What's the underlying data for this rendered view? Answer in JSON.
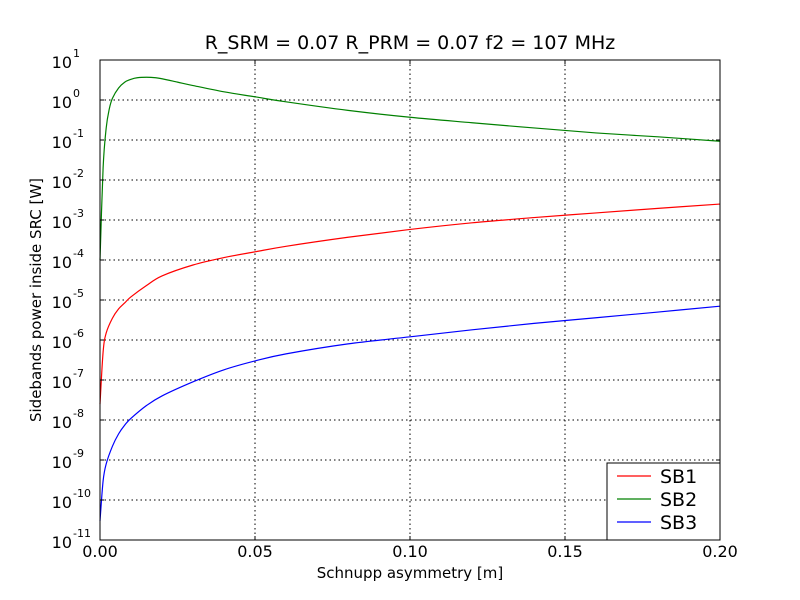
{
  "chart_data": {
    "type": "line",
    "title": "R_SRM = 0.07 R_PRM = 0.07   f2 = 107 MHz",
    "xlabel": "Schnupp asymmetry [m]",
    "ylabel": "Sidebands power inside SRC [W]",
    "xlim": [
      0.0,
      0.2
    ],
    "ylim": [
      1e-11,
      10
    ],
    "yscale": "log",
    "grid": true,
    "legend_position": "bottom-right",
    "x_ticks": [
      {
        "value": 0.0,
        "label": "0.00"
      },
      {
        "value": 0.05,
        "label": "0.05"
      },
      {
        "value": 0.1,
        "label": "0.10"
      },
      {
        "value": 0.15,
        "label": "0.15"
      },
      {
        "value": 0.2,
        "label": "0.20"
      }
    ],
    "y_ticks": [
      {
        "value": 1e-11,
        "base": "10",
        "exp": "-11"
      },
      {
        "value": 1e-10,
        "base": "10",
        "exp": "-10"
      },
      {
        "value": 1e-09,
        "base": "10",
        "exp": "-9"
      },
      {
        "value": 1e-08,
        "base": "10",
        "exp": "-8"
      },
      {
        "value": 1e-07,
        "base": "10",
        "exp": "-7"
      },
      {
        "value": 1e-06,
        "base": "10",
        "exp": "-6"
      },
      {
        "value": 1e-05,
        "base": "10",
        "exp": "-5"
      },
      {
        "value": 0.0001,
        "base": "10",
        "exp": "-4"
      },
      {
        "value": 0.001,
        "base": "10",
        "exp": "-3"
      },
      {
        "value": 0.01,
        "base": "10",
        "exp": "-2"
      },
      {
        "value": 0.1,
        "base": "10",
        "exp": "-1"
      },
      {
        "value": 1,
        "base": "10",
        "exp": "0"
      },
      {
        "value": 10,
        "base": "10",
        "exp": "1"
      }
    ],
    "series": [
      {
        "name": "SB1",
        "color": "#ff0000",
        "x": [
          0.0,
          0.001,
          0.002,
          0.004,
          0.006,
          0.008,
          0.01,
          0.015,
          0.02,
          0.03,
          0.04,
          0.05,
          0.06,
          0.08,
          0.1,
          0.12,
          0.14,
          0.16,
          0.18,
          0.2
        ],
        "y": [
          2.5e-08,
          5e-07,
          1.5e-06,
          3.5e-06,
          6e-06,
          8.5e-06,
          1.2e-05,
          2.3e-05,
          4e-05,
          7.5e-05,
          0.000115,
          0.00016,
          0.00022,
          0.00037,
          0.00058,
          0.00085,
          0.00115,
          0.0015,
          0.00195,
          0.0025
        ]
      },
      {
        "name": "SB2",
        "color": "#008000",
        "x": [
          0.0,
          0.001,
          0.002,
          0.003,
          0.004,
          0.006,
          0.008,
          0.01,
          0.012,
          0.015,
          0.018,
          0.02,
          0.025,
          0.03,
          0.04,
          0.05,
          0.06,
          0.08,
          0.1,
          0.12,
          0.14,
          0.16,
          0.18,
          0.2
        ],
        "y": [
          0.0001,
          0.02,
          0.2,
          0.6,
          1.1,
          2.0,
          2.8,
          3.3,
          3.6,
          3.7,
          3.6,
          3.4,
          2.8,
          2.3,
          1.6,
          1.2,
          0.9,
          0.55,
          0.37,
          0.27,
          0.2,
          0.15,
          0.12,
          0.093
        ]
      },
      {
        "name": "SB3",
        "color": "#0000ff",
        "x": [
          0.0,
          0.001,
          0.002,
          0.004,
          0.006,
          0.008,
          0.01,
          0.015,
          0.02,
          0.03,
          0.04,
          0.05,
          0.06,
          0.08,
          0.1,
          0.12,
          0.14,
          0.16,
          0.18,
          0.2
        ],
        "y": [
          3e-11,
          3e-10,
          8e-10,
          2.2e-09,
          4.5e-09,
          7.5e-09,
          1.1e-08,
          2.3e-08,
          4e-08,
          9e-08,
          1.8e-07,
          3e-07,
          4.5e-07,
          8e-07,
          1.2e-06,
          1.8e-06,
          2.6e-06,
          3.6e-06,
          5e-06,
          7e-06
        ]
      }
    ]
  }
}
